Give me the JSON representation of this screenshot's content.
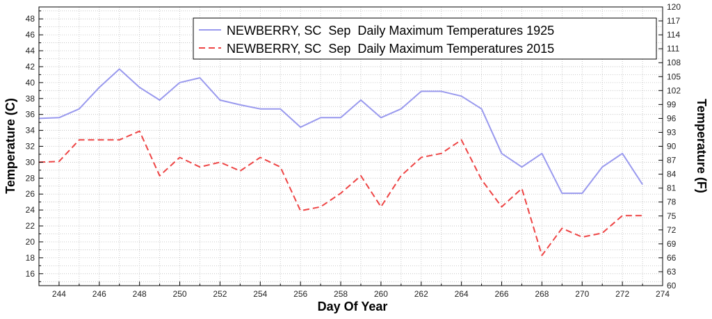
{
  "chart_data": {
    "type": "line",
    "xlabel": "Day Of Year",
    "ylabel_left": "Temperature (C)",
    "ylabel_right": "Temperature (F)",
    "xlim": [
      243,
      274
    ],
    "ylim_left": [
      14.5,
      49.5
    ],
    "ylim_right": [
      60,
      120
    ],
    "x_ticks": [
      244,
      246,
      248,
      250,
      252,
      254,
      256,
      258,
      260,
      262,
      264,
      266,
      268,
      270,
      272,
      274
    ],
    "y_ticks_left": [
      16,
      18,
      20,
      22,
      24,
      26,
      28,
      30,
      32,
      34,
      36,
      38,
      40,
      42,
      44,
      46,
      48
    ],
    "y_ticks_right": [
      60,
      63,
      66,
      69,
      72,
      75,
      78,
      81,
      84,
      87,
      90,
      93,
      96,
      99,
      102,
      105,
      108,
      111,
      114,
      117,
      120
    ],
    "grid": true,
    "legend_position": "top-right",
    "series": [
      {
        "name": "NEWBERRY, SC  Sep  Daily Maximum Temperatures 1925",
        "color": "#9999ee",
        "dash": "solid",
        "x": [
          243,
          244,
          245,
          246,
          247,
          248,
          249,
          250,
          251,
          252,
          253,
          254,
          255,
          256,
          257,
          258,
          259,
          260,
          261,
          262,
          263,
          264,
          265,
          266,
          267,
          268,
          269,
          270,
          271,
          272,
          273
        ],
        "values": [
          35.5,
          35.6,
          36.7,
          39.4,
          41.7,
          39.4,
          37.8,
          40.0,
          40.6,
          37.8,
          37.2,
          36.7,
          36.7,
          34.4,
          35.6,
          35.6,
          37.8,
          35.6,
          36.7,
          38.9,
          38.9,
          38.3,
          36.7,
          31.1,
          29.4,
          31.1,
          26.1,
          26.1,
          29.4,
          31.1,
          27.2
        ]
      },
      {
        "name": "NEWBERRY, SC  Sep  Daily Maximum Temperatures 2015",
        "color": "#ee4444",
        "dash": "dashed",
        "x": [
          243,
          244,
          245,
          246,
          247,
          248,
          249,
          250,
          251,
          252,
          253,
          254,
          255,
          256,
          257,
          258,
          259,
          260,
          261,
          262,
          263,
          264,
          265,
          266,
          267,
          268,
          269,
          270,
          271,
          272,
          273
        ],
        "values": [
          30.0,
          30.1,
          32.8,
          32.8,
          32.8,
          33.9,
          28.3,
          30.6,
          29.4,
          30.0,
          28.9,
          30.6,
          29.4,
          23.9,
          24.4,
          26.1,
          28.3,
          24.4,
          28.3,
          30.6,
          31.1,
          32.8,
          27.8,
          24.4,
          26.7,
          18.3,
          21.7,
          20.6,
          21.1,
          23.3,
          23.3
        ]
      }
    ]
  }
}
